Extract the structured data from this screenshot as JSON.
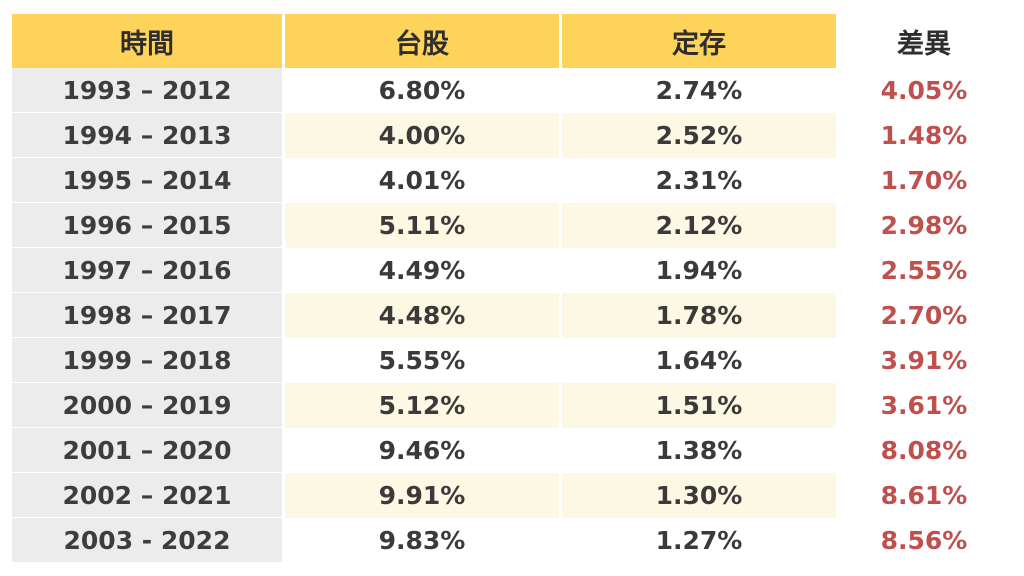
{
  "table": {
    "headers": [
      "時間",
      "台股",
      "定存",
      "差異"
    ],
    "rows": [
      {
        "period": "1993 – 2012",
        "stock": "6.80%",
        "deposit": "2.74%",
        "diff": "4.05%"
      },
      {
        "period": "1994 – 2013",
        "stock": "4.00%",
        "deposit": "2.52%",
        "diff": "1.48%"
      },
      {
        "period": "1995 – 2014",
        "stock": "4.01%",
        "deposit": "2.31%",
        "diff": "1.70%"
      },
      {
        "period": "1996 – 2015",
        "stock": "5.11%",
        "deposit": "2.12%",
        "diff": "2.98%"
      },
      {
        "period": "1997 – 2016",
        "stock": "4.49%",
        "deposit": "1.94%",
        "diff": "2.55%"
      },
      {
        "period": "1998 – 2017",
        "stock": "4.48%",
        "deposit": "1.78%",
        "diff": "2.70%"
      },
      {
        "period": "1999 – 2018",
        "stock": "5.55%",
        "deposit": "1.64%",
        "diff": "3.91%"
      },
      {
        "period": "2000 – 2019",
        "stock": "5.12%",
        "deposit": "1.51%",
        "diff": "3.61%"
      },
      {
        "period": "2001 – 2020",
        "stock": "9.46%",
        "deposit": "1.38%",
        "diff": "8.08%"
      },
      {
        "period": "2002 – 2021",
        "stock": "9.91%",
        "deposit": "1.30%",
        "diff": "8.61%"
      },
      {
        "period": "2003 - 2022",
        "stock": "9.83%",
        "deposit": "1.27%",
        "diff": "8.56%"
      }
    ]
  },
  "colors": {
    "header_bg": "#fdd35a",
    "period_bg": "#ececec",
    "stripe_bg": "#fdf8e3",
    "diff_text": "#c0504d",
    "body_text": "#3a3a3a"
  }
}
